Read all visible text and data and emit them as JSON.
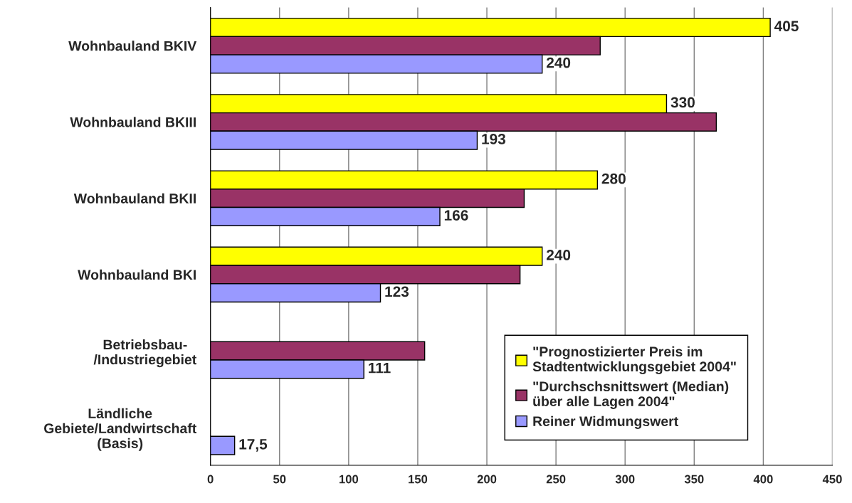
{
  "chart_data": {
    "type": "bar",
    "orientation": "horizontal",
    "categories": [
      "Wohnbauland BKIV",
      "Wohnbauland BKIII",
      "Wohnbauland BKII",
      "Wohnbauland BKI",
      "Betriebsbau-\n/Industriegebiet",
      "Ländliche\nGebiete/Landwirtschaft\n(Basis)"
    ],
    "series": [
      {
        "name": "\"Prognostizierter Preis im\nStadtentwicklungsgebiet 2004\"",
        "color": "#ffff00",
        "values": [
          405,
          330,
          280,
          240,
          null,
          null
        ],
        "value_labels": [
          "405",
          "330",
          "280",
          "240",
          null,
          null
        ]
      },
      {
        "name": "\"Durchschsnittswert (Median)\nüber alle Lagen 2004\"",
        "color": "#993366",
        "values": [
          282,
          366,
          227,
          224,
          155,
          null
        ]
      },
      {
        "name": "Reiner Widmungswert",
        "color": "#9999ff",
        "values": [
          240,
          193,
          166,
          123,
          111,
          17.5
        ],
        "value_labels": [
          "240",
          "193",
          "166",
          "123",
          "111",
          "17,5"
        ]
      }
    ],
    "xlim": [
      0,
      450
    ],
    "xticks": [
      0,
      50,
      100,
      150,
      200,
      250,
      300,
      350,
      400,
      450
    ],
    "grid": "x",
    "legend": "bottom right"
  }
}
